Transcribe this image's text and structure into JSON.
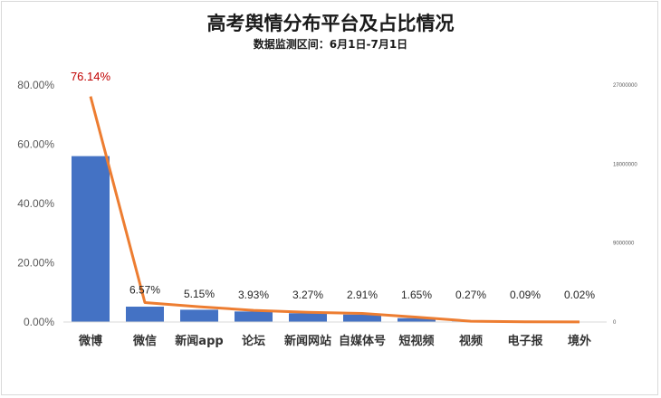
{
  "chart_data": {
    "type": "bar",
    "title": "高考舆情分布平台及占比情况",
    "subtitle": "数据监测区间：6月1日-7月1日",
    "categories": [
      "微博",
      "微信",
      "新闻app",
      "论坛",
      "新闻网站",
      "自媒体号",
      "短视频",
      "视频",
      "电子报",
      "境外"
    ],
    "series": [
      {
        "type": "bar",
        "axis": "right",
        "color": "#4472c4",
        "values": [
          18900000,
          1750000,
          1400000,
          1200000,
          1000000,
          850000,
          440000,
          72000,
          24000,
          5000
        ]
      },
      {
        "type": "line",
        "axis": "left",
        "color": "#ed7d31",
        "values": [
          76.14,
          6.57,
          5.15,
          3.93,
          3.27,
          2.91,
          1.65,
          0.27,
          0.09,
          0.02
        ]
      }
    ],
    "data_labels": [
      "76.14%",
      "6.57%",
      "5.15%",
      "3.93%",
      "3.27%",
      "2.91%",
      "1.65%",
      "0.27%",
      "0.09%",
      "0.02%"
    ],
    "highlight_color": "#c00000",
    "y_left": {
      "ylim": [
        0,
        80
      ],
      "ticks": [
        "0.00%",
        "20.00%",
        "40.00%",
        "60.00%",
        "80.00%"
      ]
    },
    "y_right": {
      "ylim": [
        0,
        27000000
      ],
      "ticks": [
        "0",
        "9000000",
        "18000000",
        "27000000"
      ]
    },
    "grid": false,
    "legend": "none"
  }
}
